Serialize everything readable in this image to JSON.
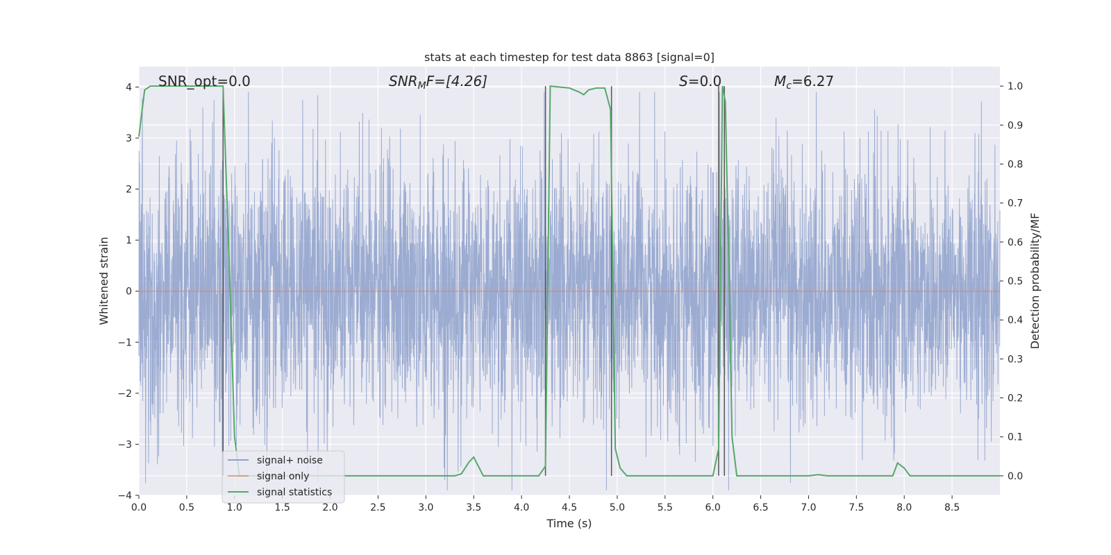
{
  "chart_data": {
    "type": "line",
    "title": "stats at each timestep for test data 8863 [signal=0]",
    "xlabel": "Time (s)",
    "ylabel": "Whitened strain",
    "ylabel_right": "Detection probability/MF",
    "xlim": [
      0,
      9
    ],
    "ylim": [
      -4,
      4.4
    ],
    "ylim_right": [
      -0.05,
      1.05
    ],
    "x_ticks": [
      "0.0",
      "0.5",
      "1.0",
      "1.5",
      "2.0",
      "2.5",
      "3.0",
      "3.5",
      "4.0",
      "4.5",
      "5.0",
      "5.5",
      "6.0",
      "6.5",
      "7.0",
      "7.5",
      "8.0",
      "8.5"
    ],
    "y_ticks": [
      "4",
      "3",
      "2",
      "1",
      "0",
      "−1",
      "−2",
      "−3",
      "−4"
    ],
    "y_ticks_right": [
      "1.0",
      "0.9",
      "0.8",
      "0.7",
      "0.6",
      "0.5",
      "0.4",
      "0.3",
      "0.2",
      "0.1",
      "0.0"
    ],
    "grid": true,
    "legend_position": "bottom-left",
    "annotations": {
      "snr_opt": "SNR_opt=0.0",
      "snr_mf_prefix": "SNR",
      "snr_mf_sub": "M",
      "snr_mf_suffix": "F=[4.26]",
      "s_label": "S",
      "s_value": "=0.0",
      "mc_label": "M",
      "mc_sub": "c",
      "mc_value": "=6.27"
    },
    "vlines": [
      0.88,
      4.25,
      4.94,
      6.06,
      6.12
    ],
    "series": [
      {
        "name": "signal+ noise",
        "color": "#8da0cb"
      },
      {
        "name": "signal only",
        "color": "#dd8452"
      },
      {
        "name": "signal statistics",
        "color": "#55a868",
        "x": [
          0,
          0.06,
          0.12,
          0.2,
          0.3,
          0.5,
          0.7,
          0.88,
          0.95,
          1.0,
          1.05,
          1.1,
          1.2,
          1.5,
          2.0,
          2.5,
          3.0,
          3.3,
          3.37,
          3.45,
          3.5,
          3.6,
          3.8,
          4.0,
          4.18,
          4.25,
          4.3,
          4.5,
          4.6,
          4.65,
          4.7,
          4.78,
          4.87,
          4.93,
          4.98,
          5.03,
          5.1,
          5.5,
          6.0,
          6.06,
          6.1,
          6.13,
          6.17,
          6.2,
          6.25,
          6.5,
          7.0,
          7.1,
          7.2,
          7.5,
          7.88,
          7.93,
          8.0,
          8.06,
          8.2,
          8.5,
          9.0
        ],
        "y": [
          0.87,
          0.99,
          1.0,
          1.0,
          1.0,
          1.0,
          1.0,
          1.0,
          0.5,
          0.1,
          0.0,
          0.0,
          0.0,
          0.0,
          0.0,
          0.0,
          0.0,
          0.0,
          0.005,
          0.035,
          0.048,
          0.0,
          0.0,
          0.0,
          0.0,
          0.025,
          1.0,
          0.995,
          0.985,
          0.978,
          0.99,
          0.995,
          0.995,
          0.94,
          0.07,
          0.02,
          0.0,
          0.0,
          0.0,
          0.07,
          1.0,
          0.96,
          0.5,
          0.1,
          0.0,
          0.0,
          0.0,
          0.003,
          0.0,
          0.0,
          0.0,
          0.033,
          0.02,
          0.0,
          0.0,
          0.0,
          0.0
        ]
      }
    ]
  }
}
